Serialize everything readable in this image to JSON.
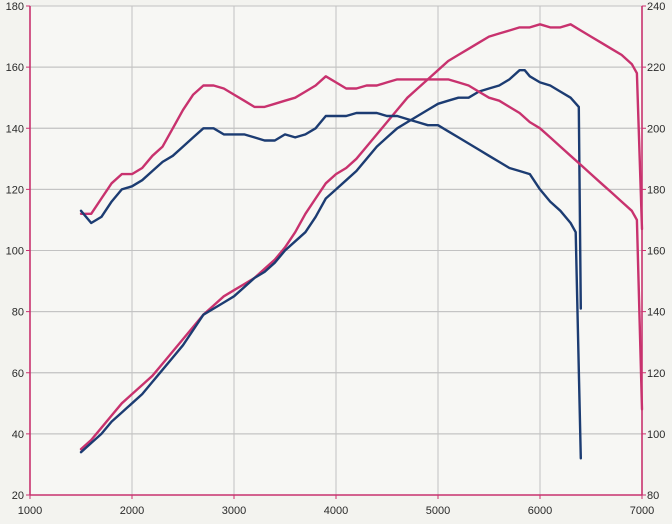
{
  "chart_data": {
    "type": "line",
    "title": "",
    "xlabel": "",
    "ylabel": "",
    "x_ticks": [
      1000,
      2000,
      3000,
      4000,
      5000,
      6000,
      7000
    ],
    "y_left_ticks": [
      20,
      40,
      60,
      80,
      100,
      120,
      140,
      160,
      180
    ],
    "y_right_ticks": [
      80,
      100,
      120,
      140,
      160,
      180,
      200,
      220,
      240
    ],
    "xlim": [
      1000,
      7000
    ],
    "ylim_left": [
      20,
      180
    ],
    "ylim_right": [
      80,
      240
    ],
    "grid": true,
    "colors": {
      "red": "#c8326e",
      "blue": "#1c3c72",
      "axis": "#c8326e",
      "grid": "#c2c2c2"
    },
    "series": [
      {
        "color": "#c8326e",
        "axis": "left",
        "points": [
          [
            1500,
            35
          ],
          [
            1600,
            38
          ],
          [
            1700,
            42
          ],
          [
            1800,
            46
          ],
          [
            1900,
            50
          ],
          [
            2000,
            53
          ],
          [
            2100,
            56
          ],
          [
            2200,
            59
          ],
          [
            2300,
            63
          ],
          [
            2400,
            67
          ],
          [
            2500,
            71
          ],
          [
            2600,
            75
          ],
          [
            2700,
            79
          ],
          [
            2800,
            82
          ],
          [
            2900,
            85
          ],
          [
            3000,
            87
          ],
          [
            3100,
            89
          ],
          [
            3200,
            91
          ],
          [
            3300,
            94
          ],
          [
            3400,
            97
          ],
          [
            3500,
            101
          ],
          [
            3600,
            106
          ],
          [
            3700,
            112
          ],
          [
            3800,
            117
          ],
          [
            3900,
            122
          ],
          [
            4000,
            125
          ],
          [
            4100,
            127
          ],
          [
            4200,
            130
          ],
          [
            4300,
            134
          ],
          [
            4400,
            138
          ],
          [
            4500,
            142
          ],
          [
            4600,
            146
          ],
          [
            4700,
            150
          ],
          [
            4800,
            153
          ],
          [
            4900,
            156
          ],
          [
            5000,
            159
          ],
          [
            5100,
            162
          ],
          [
            5200,
            164
          ],
          [
            5300,
            166
          ],
          [
            5400,
            168
          ],
          [
            5500,
            170
          ],
          [
            5600,
            171
          ],
          [
            5700,
            172
          ],
          [
            5800,
            173
          ],
          [
            5900,
            173
          ],
          [
            6000,
            174
          ],
          [
            6100,
            173
          ],
          [
            6200,
            173
          ],
          [
            6300,
            174
          ],
          [
            6400,
            172
          ],
          [
            6500,
            170
          ],
          [
            6600,
            168
          ],
          [
            6700,
            166
          ],
          [
            6800,
            164
          ],
          [
            6900,
            161
          ],
          [
            6950,
            158
          ],
          [
            7000,
            107
          ]
        ]
      },
      {
        "color": "#1c3c72",
        "axis": "left",
        "points": [
          [
            1500,
            34
          ],
          [
            1600,
            37
          ],
          [
            1700,
            40
          ],
          [
            1800,
            44
          ],
          [
            1900,
            47
          ],
          [
            2000,
            50
          ],
          [
            2100,
            53
          ],
          [
            2200,
            57
          ],
          [
            2300,
            61
          ],
          [
            2400,
            65
          ],
          [
            2500,
            69
          ],
          [
            2600,
            74
          ],
          [
            2700,
            79
          ],
          [
            2800,
            81
          ],
          [
            2900,
            83
          ],
          [
            3000,
            85
          ],
          [
            3100,
            88
          ],
          [
            3200,
            91
          ],
          [
            3300,
            93
          ],
          [
            3400,
            96
          ],
          [
            3500,
            100
          ],
          [
            3600,
            103
          ],
          [
            3700,
            106
          ],
          [
            3800,
            111
          ],
          [
            3900,
            117
          ],
          [
            4000,
            120
          ],
          [
            4100,
            123
          ],
          [
            4200,
            126
          ],
          [
            4300,
            130
          ],
          [
            4400,
            134
          ],
          [
            4500,
            137
          ],
          [
            4600,
            140
          ],
          [
            4700,
            142
          ],
          [
            4800,
            144
          ],
          [
            4900,
            146
          ],
          [
            5000,
            148
          ],
          [
            5100,
            149
          ],
          [
            5200,
            150
          ],
          [
            5300,
            150
          ],
          [
            5400,
            152
          ],
          [
            5500,
            153
          ],
          [
            5600,
            154
          ],
          [
            5700,
            156
          ],
          [
            5800,
            159
          ],
          [
            5850,
            159
          ],
          [
            5900,
            157
          ],
          [
            6000,
            155
          ],
          [
            6100,
            154
          ],
          [
            6200,
            152
          ],
          [
            6300,
            150
          ],
          [
            6380,
            147
          ],
          [
            6400,
            81
          ]
        ]
      },
      {
        "color": "#c8326e",
        "axis": "right",
        "points": [
          [
            1500,
            172
          ],
          [
            1600,
            172
          ],
          [
            1700,
            177
          ],
          [
            1800,
            182
          ],
          [
            1900,
            185
          ],
          [
            2000,
            185
          ],
          [
            2100,
            187
          ],
          [
            2200,
            191
          ],
          [
            2300,
            194
          ],
          [
            2400,
            200
          ],
          [
            2500,
            206
          ],
          [
            2600,
            211
          ],
          [
            2700,
            214
          ],
          [
            2800,
            214
          ],
          [
            2900,
            213
          ],
          [
            3000,
            211
          ],
          [
            3100,
            209
          ],
          [
            3200,
            207
          ],
          [
            3300,
            207
          ],
          [
            3400,
            208
          ],
          [
            3500,
            209
          ],
          [
            3600,
            210
          ],
          [
            3700,
            212
          ],
          [
            3800,
            214
          ],
          [
            3900,
            217
          ],
          [
            4000,
            215
          ],
          [
            4100,
            213
          ],
          [
            4200,
            213
          ],
          [
            4300,
            214
          ],
          [
            4400,
            214
          ],
          [
            4500,
            215
          ],
          [
            4600,
            216
          ],
          [
            4700,
            216
          ],
          [
            4800,
            216
          ],
          [
            4900,
            216
          ],
          [
            5000,
            216
          ],
          [
            5100,
            216
          ],
          [
            5200,
            215
          ],
          [
            5300,
            214
          ],
          [
            5400,
            212
          ],
          [
            5500,
            210
          ],
          [
            5600,
            209
          ],
          [
            5700,
            207
          ],
          [
            5800,
            205
          ],
          [
            5900,
            202
          ],
          [
            6000,
            200
          ],
          [
            6100,
            197
          ],
          [
            6200,
            194
          ],
          [
            6300,
            191
          ],
          [
            6400,
            188
          ],
          [
            6500,
            185
          ],
          [
            6600,
            182
          ],
          [
            6700,
            179
          ],
          [
            6800,
            176
          ],
          [
            6900,
            173
          ],
          [
            6950,
            170
          ],
          [
            7000,
            108
          ]
        ]
      },
      {
        "color": "#1c3c72",
        "axis": "right",
        "points": [
          [
            1500,
            173
          ],
          [
            1600,
            169
          ],
          [
            1700,
            171
          ],
          [
            1800,
            176
          ],
          [
            1900,
            180
          ],
          [
            2000,
            181
          ],
          [
            2100,
            183
          ],
          [
            2200,
            186
          ],
          [
            2300,
            189
          ],
          [
            2400,
            191
          ],
          [
            2500,
            194
          ],
          [
            2600,
            197
          ],
          [
            2700,
            200
          ],
          [
            2800,
            200
          ],
          [
            2900,
            198
          ],
          [
            3000,
            198
          ],
          [
            3100,
            198
          ],
          [
            3200,
            197
          ],
          [
            3300,
            196
          ],
          [
            3400,
            196
          ],
          [
            3500,
            198
          ],
          [
            3600,
            197
          ],
          [
            3700,
            198
          ],
          [
            3800,
            200
          ],
          [
            3900,
            204
          ],
          [
            4000,
            204
          ],
          [
            4100,
            204
          ],
          [
            4200,
            205
          ],
          [
            4300,
            205
          ],
          [
            4400,
            205
          ],
          [
            4500,
            204
          ],
          [
            4600,
            204
          ],
          [
            4700,
            203
          ],
          [
            4800,
            202
          ],
          [
            4900,
            201
          ],
          [
            5000,
            201
          ],
          [
            5100,
            199
          ],
          [
            5200,
            197
          ],
          [
            5300,
            195
          ],
          [
            5400,
            193
          ],
          [
            5500,
            191
          ],
          [
            5600,
            189
          ],
          [
            5700,
            187
          ],
          [
            5800,
            186
          ],
          [
            5900,
            185
          ],
          [
            6000,
            180
          ],
          [
            6100,
            176
          ],
          [
            6200,
            173
          ],
          [
            6300,
            169
          ],
          [
            6350,
            166
          ],
          [
            6400,
            92
          ]
        ]
      }
    ]
  }
}
